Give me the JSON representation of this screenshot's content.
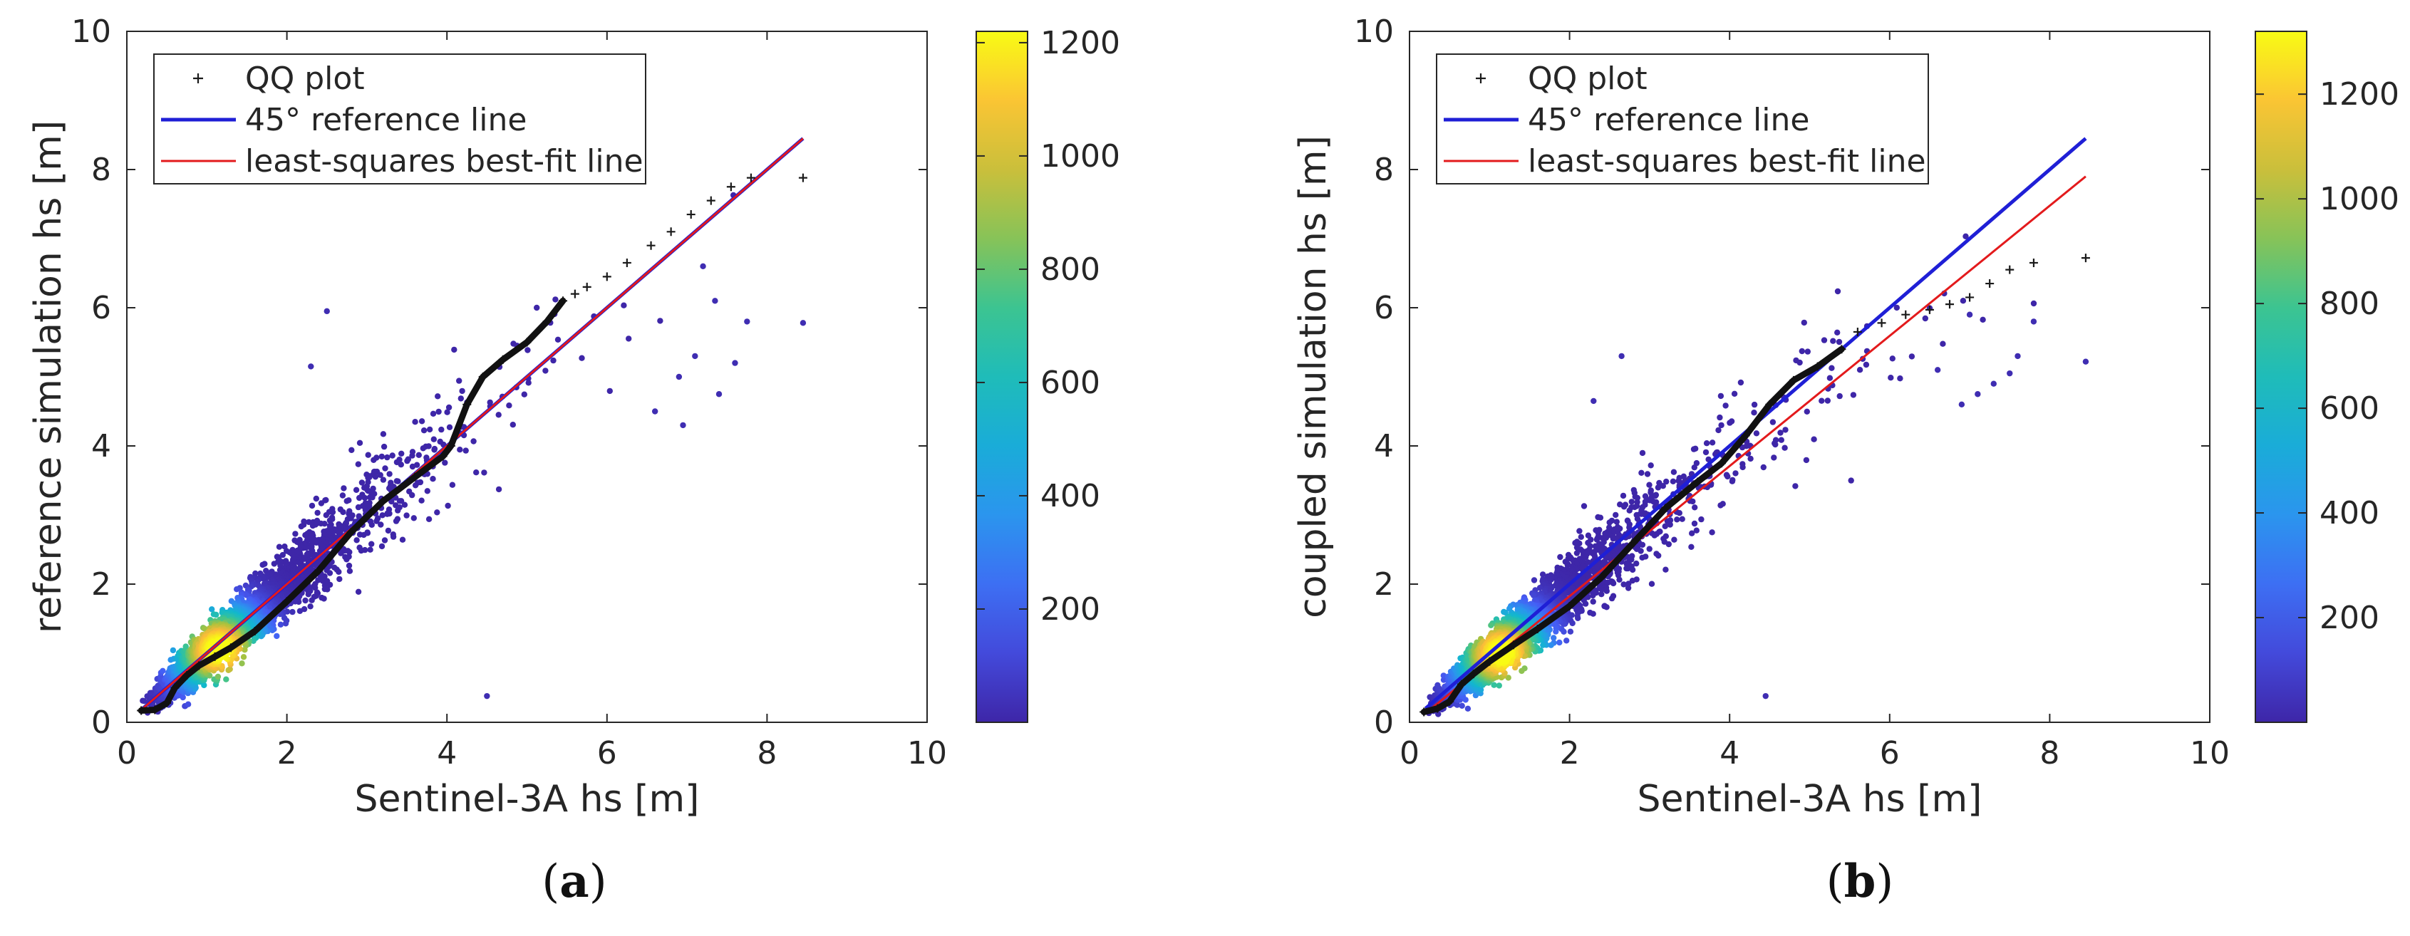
{
  "chart_data": [
    {
      "type": "scatter",
      "panel": "a",
      "caption": "a",
      "xlabel": "Sentinel-3A hs [m]",
      "ylabel": "reference simulation hs [m]",
      "xlim": [
        0,
        10
      ],
      "ylim": [
        0,
        10
      ],
      "xticks": [
        0,
        2,
        4,
        6,
        8,
        10
      ],
      "yticks": [
        0,
        2,
        4,
        6,
        8,
        10
      ],
      "legend": {
        "placement": "top-left",
        "entries": [
          {
            "label": "QQ plot",
            "marker": "+",
            "color": "#1a1a1a"
          },
          {
            "label": "45° reference line",
            "color": "#1f1fd6"
          },
          {
            "label": "least-squares best-fit line",
            "color": "#e31a1c"
          }
        ]
      },
      "colorbar": {
        "min": 0,
        "max": 1220,
        "ticks": [
          200,
          400,
          600,
          800,
          1000,
          1200
        ]
      },
      "reference_line": {
        "x": [
          0.2,
          8.45
        ],
        "y": [
          0.2,
          8.45
        ]
      },
      "best_fit_line": {
        "x": [
          0.2,
          8.45
        ],
        "y": [
          0.2,
          8.45
        ]
      },
      "qq_series": {
        "x": [
          0.18,
          0.35,
          0.5,
          0.6,
          0.75,
          0.9,
          1.1,
          1.3,
          1.6,
          2.0,
          2.4,
          2.8,
          3.2,
          3.6,
          3.95,
          4.05,
          4.25,
          4.45,
          4.7,
          5.0,
          5.25,
          5.45,
          5.6,
          5.75,
          6.0,
          6.25,
          6.55,
          6.8,
          7.05,
          7.3,
          7.55,
          7.8,
          8.45
        ],
        "y": [
          0.17,
          0.18,
          0.28,
          0.5,
          0.68,
          0.82,
          0.95,
          1.08,
          1.32,
          1.75,
          2.2,
          2.75,
          3.2,
          3.55,
          3.85,
          4.0,
          4.6,
          5.0,
          5.25,
          5.5,
          5.8,
          6.1,
          6.2,
          6.3,
          6.45,
          6.65,
          6.9,
          7.1,
          7.35,
          7.55,
          7.75,
          7.88,
          7.88
        ]
      },
      "outliers": [
        [
          2.5,
          5.95
        ],
        [
          2.3,
          5.15
        ],
        [
          4.5,
          0.38
        ],
        [
          8.45,
          5.78
        ],
        [
          6.9,
          5.0
        ],
        [
          7.1,
          5.3
        ],
        [
          7.4,
          4.75
        ],
        [
          7.6,
          5.2
        ],
        [
          7.75,
          5.8
        ],
        [
          6.6,
          4.5
        ],
        [
          7.2,
          6.6
        ],
        [
          7.35,
          6.1
        ],
        [
          6.95,
          4.3
        ]
      ]
    },
    {
      "type": "scatter",
      "panel": "b",
      "caption": "b",
      "xlabel": "Sentinel-3A hs [m]",
      "ylabel": "coupled simulation hs [m]",
      "xlim": [
        0,
        10
      ],
      "ylim": [
        0,
        10
      ],
      "xticks": [
        0,
        2,
        4,
        6,
        8,
        10
      ],
      "yticks": [
        0,
        2,
        4,
        6,
        8,
        10
      ],
      "legend": {
        "placement": "top-left",
        "entries": [
          {
            "label": "QQ plot",
            "marker": "+",
            "color": "#1a1a1a"
          },
          {
            "label": "45° reference line",
            "color": "#1f1fd6"
          },
          {
            "label": "least-squares best-fit line",
            "color": "#e31a1c"
          }
        ]
      },
      "colorbar": {
        "min": 0,
        "max": 1320,
        "ticks": [
          200,
          400,
          600,
          800,
          1000,
          1200
        ]
      },
      "reference_line": {
        "x": [
          0.2,
          8.45
        ],
        "y": [
          0.2,
          8.45
        ]
      },
      "best_fit_line": {
        "x": [
          0.2,
          8.45
        ],
        "y": [
          0.13,
          7.9
        ]
      },
      "qq_series": {
        "x": [
          0.18,
          0.35,
          0.5,
          0.65,
          0.8,
          1.0,
          1.3,
          1.6,
          2.0,
          2.4,
          2.8,
          3.2,
          3.6,
          3.9,
          4.2,
          4.5,
          4.8,
          5.1,
          5.4,
          5.6,
          5.9,
          6.2,
          6.5,
          6.75,
          7.0,
          7.25,
          7.5,
          7.8,
          8.45
        ],
        "y": [
          0.15,
          0.2,
          0.3,
          0.55,
          0.7,
          0.88,
          1.12,
          1.35,
          1.68,
          2.1,
          2.6,
          3.1,
          3.48,
          3.75,
          4.15,
          4.6,
          4.95,
          5.15,
          5.4,
          5.65,
          5.78,
          5.9,
          5.97,
          6.05,
          6.15,
          6.35,
          6.55,
          6.65,
          6.72
        ]
      },
      "outliers": [
        [
          2.65,
          5.3
        ],
        [
          2.3,
          4.65
        ],
        [
          4.45,
          0.38
        ],
        [
          8.45,
          5.22
        ],
        [
          6.9,
          4.6
        ],
        [
          7.1,
          4.75
        ],
        [
          7.5,
          5.05
        ],
        [
          7.6,
          5.3
        ],
        [
          7.8,
          5.8
        ],
        [
          7.0,
          5.9
        ],
        [
          7.3,
          4.9
        ],
        [
          6.6,
          5.1
        ]
      ]
    }
  ]
}
